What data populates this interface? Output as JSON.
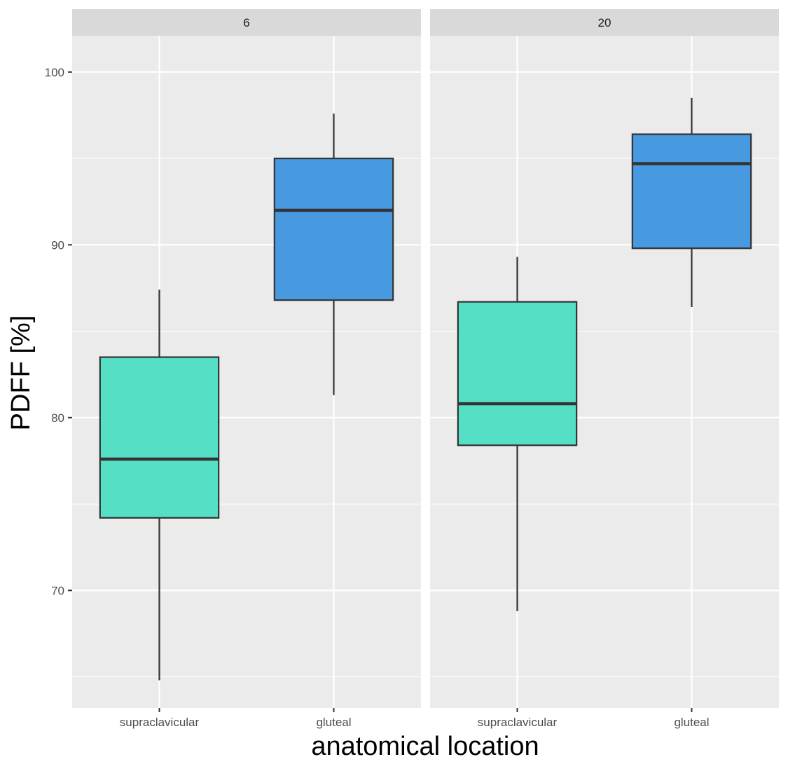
{
  "chart_data": {
    "type": "boxplot",
    "xlabel": "anatomical location",
    "ylabel": "PDFF [%]",
    "ylim": [
      63.2,
      102.1
    ],
    "y_ticks": [
      70,
      80,
      90,
      100
    ],
    "y_tick_labels": [
      "70",
      "80",
      "90",
      "100"
    ],
    "categories": [
      "supraclavicular",
      "gluteal"
    ],
    "colors": {
      "supraclavicular": "#55dfc5",
      "gluteal": "#4799e0"
    },
    "facets": [
      {
        "label": "6",
        "boxes": [
          {
            "category": "supraclavicular",
            "whisker_low": 64.8,
            "q1": 74.2,
            "median": 77.6,
            "q3": 83.5,
            "whisker_high": 87.4
          },
          {
            "category": "gluteal",
            "whisker_low": 81.3,
            "q1": 86.8,
            "median": 92.0,
            "q3": 95.0,
            "whisker_high": 97.6
          }
        ]
      },
      {
        "label": "20",
        "boxes": [
          {
            "category": "supraclavicular",
            "whisker_low": 68.8,
            "q1": 78.4,
            "median": 80.8,
            "q3": 86.7,
            "whisker_high": 89.3
          },
          {
            "category": "gluteal",
            "whisker_low": 86.4,
            "q1": 89.8,
            "median": 94.7,
            "q3": 96.4,
            "whisker_high": 98.5
          }
        ]
      }
    ]
  }
}
